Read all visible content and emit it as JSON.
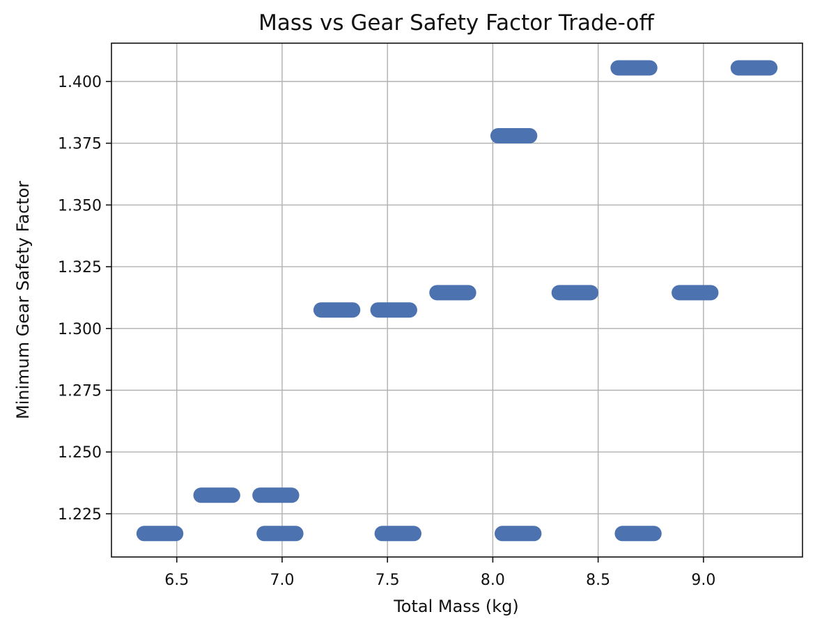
{
  "chart_data": {
    "type": "scatter",
    "title": "Mass vs Gear Safety Factor Trade-off",
    "xlabel": "Total Mass (kg)",
    "ylabel": "Minimum Gear Safety Factor",
    "xlim": [
      6.19,
      9.47
    ],
    "ylim": [
      1.2075,
      1.4155
    ],
    "xticks": [
      6.5,
      7.0,
      7.5,
      8.0,
      8.5,
      9.0
    ],
    "xtick_labels": [
      "6.5",
      "7.0",
      "7.5",
      "8.0",
      "8.5",
      "9.0"
    ],
    "yticks": [
      1.225,
      1.25,
      1.275,
      1.3,
      1.325,
      1.35,
      1.375,
      1.4
    ],
    "ytick_labels": [
      "1.225",
      "1.250",
      "1.275",
      "1.300",
      "1.325",
      "1.350",
      "1.375",
      "1.400"
    ],
    "grid": true,
    "marker_color": "#4c72b0",
    "points": [
      {
        "x": 6.42,
        "y": 1.217
      },
      {
        "x": 6.69,
        "y": 1.2325
      },
      {
        "x": 6.97,
        "y": 1.2325
      },
      {
        "x": 6.99,
        "y": 1.217
      },
      {
        "x": 7.26,
        "y": 1.3075
      },
      {
        "x": 7.53,
        "y": 1.3075
      },
      {
        "x": 7.55,
        "y": 1.217
      },
      {
        "x": 7.81,
        "y": 1.3145
      },
      {
        "x": 8.1,
        "y": 1.378
      },
      {
        "x": 8.12,
        "y": 1.217
      },
      {
        "x": 8.39,
        "y": 1.3145
      },
      {
        "x": 8.67,
        "y": 1.4055
      },
      {
        "x": 8.69,
        "y": 1.217
      },
      {
        "x": 8.96,
        "y": 1.3145
      },
      {
        "x": 9.24,
        "y": 1.4055
      }
    ],
    "marker_span_x": 0.15
  }
}
